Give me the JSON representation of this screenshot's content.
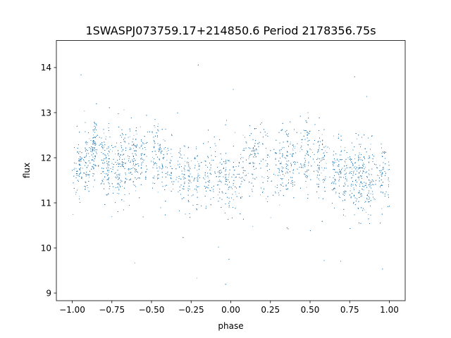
{
  "chart_data": {
    "type": "scatter",
    "title": "1SWASPJ073759.17+214850.6 Period 2178356.75s",
    "xlabel": "phase",
    "ylabel": "flux",
    "xlim": [
      -1.1,
      1.1
    ],
    "ylim": [
      8.83,
      14.6
    ],
    "x_ticks": [
      -1.0,
      -0.75,
      -0.5,
      -0.25,
      0.0,
      0.25,
      0.5,
      0.75,
      1.0
    ],
    "x_tick_labels": [
      "−1.00",
      "−0.75",
      "−0.50",
      "−0.25",
      "0.00",
      "0.25",
      "0.50",
      "0.75",
      "1.00"
    ],
    "y_ticks": [
      9,
      10,
      11,
      12,
      13,
      14
    ],
    "y_tick_labels": [
      "9",
      "10",
      "11",
      "12",
      "13",
      "14"
    ],
    "grid": false,
    "legend": "none",
    "marker_color": "#1f77b4",
    "point_count": 9000,
    "phase_range": [
      -1.0,
      1.0
    ],
    "flux_core": [
      10.5,
      12.9
    ],
    "flux_outlier_range": [
      9.1,
      14.4
    ],
    "phase_profile": {
      "phase": [
        -1.0,
        -0.85,
        -0.75,
        -0.65,
        -0.5,
        -0.4,
        -0.25,
        -0.15,
        0.0,
        0.15,
        0.25,
        0.35,
        0.5,
        0.6,
        0.75,
        0.85,
        1.0
      ],
      "mean_flux": [
        11.6,
        12.2,
        11.7,
        12.0,
        12.1,
        11.8,
        11.5,
        11.6,
        11.5,
        12.1,
        11.7,
        12.0,
        12.1,
        11.8,
        11.5,
        11.6,
        11.6
      ]
    }
  }
}
